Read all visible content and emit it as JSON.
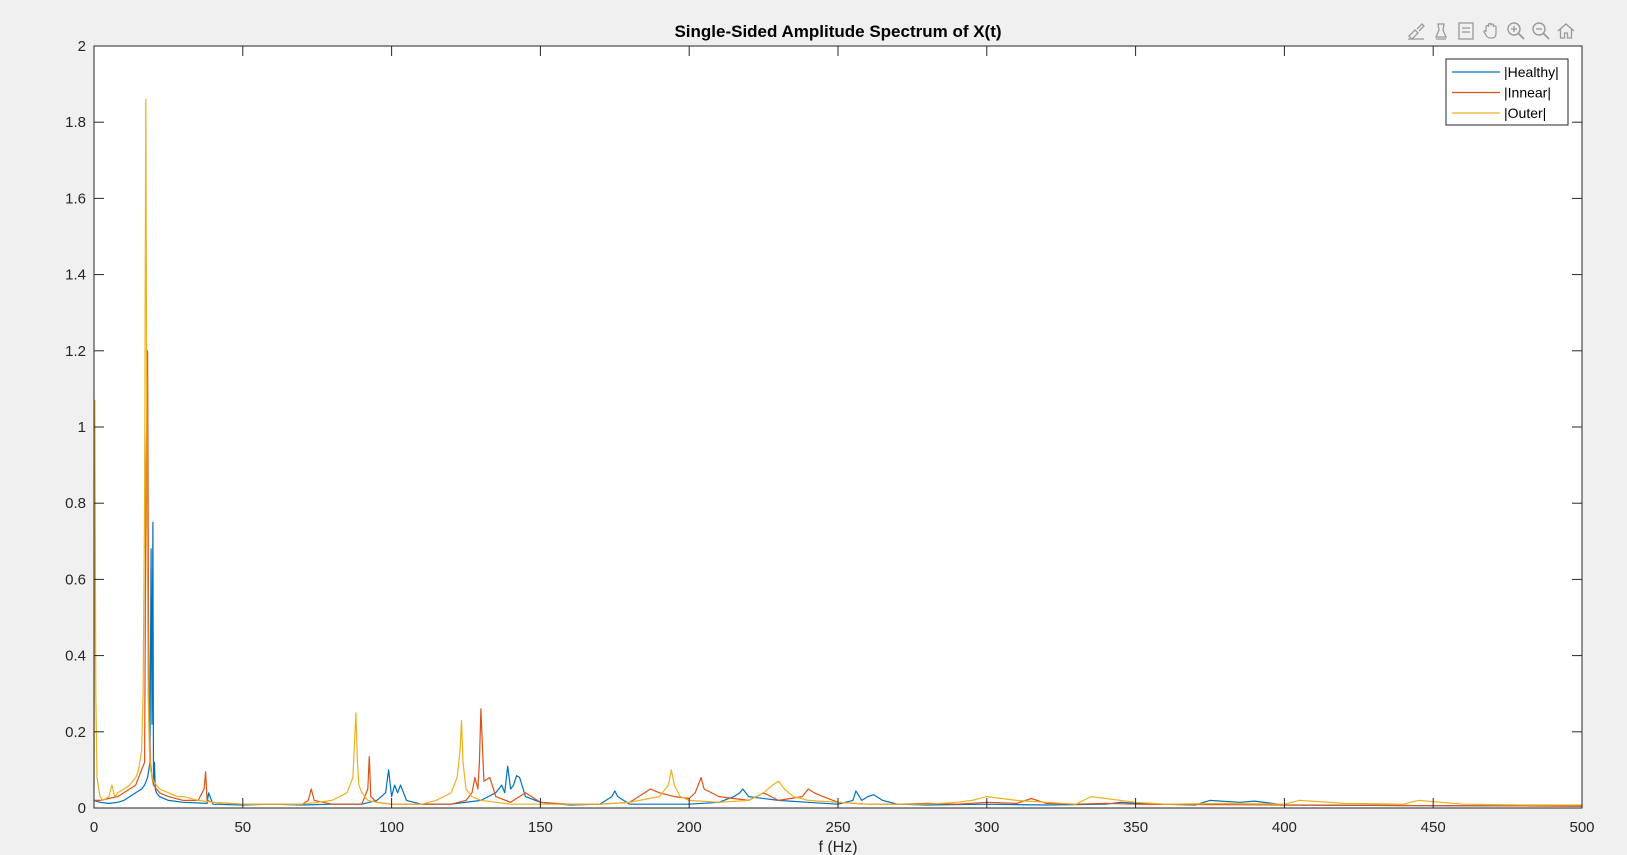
{
  "toolbar": {
    "icons": [
      "brush-icon",
      "datatip-icon",
      "legend-icon",
      "pan-hand-icon",
      "zoom-in-icon",
      "zoom-out-icon",
      "home-icon"
    ]
  },
  "chart_data": {
    "type": "line",
    "title": "Single-Sided Amplitude Spectrum of X(t)",
    "xlabel": "f (Hz)",
    "ylabel": "",
    "xlim": [
      0,
      500
    ],
    "ylim": [
      0,
      2
    ],
    "xticks": [
      0,
      50,
      100,
      150,
      200,
      250,
      300,
      350,
      400,
      450,
      500
    ],
    "yticks": [
      0,
      0.2,
      0.4,
      0.6,
      0.8,
      1,
      1.2,
      1.4,
      1.6,
      1.8,
      2
    ],
    "xtick_labels": [
      "0",
      "50",
      "100",
      "150",
      "200",
      "250",
      "300",
      "350",
      "400",
      "450",
      "500"
    ],
    "ytick_labels": [
      "0",
      "0.2",
      "0.4",
      "0.6",
      "0.8",
      "1",
      "1.2",
      "1.4",
      "1.6",
      "1.8",
      "2"
    ],
    "grid": false,
    "legend_position": "top-right",
    "series": [
      {
        "name": "|Healthy|",
        "color": "#0072BD",
        "x": [
          0,
          2,
          5,
          8,
          10,
          12,
          14,
          16,
          17,
          18,
          18.8,
          19.2,
          19.5,
          19.8,
          20,
          20.3,
          20.6,
          21,
          22,
          25,
          30,
          38,
          38.5,
          40,
          50,
          60,
          70,
          80,
          90,
          95,
          98,
          99,
          100,
          101,
          102,
          103,
          105,
          110,
          120,
          130,
          135,
          137,
          138,
          139,
          140,
          141,
          142,
          143,
          145,
          150,
          160,
          170,
          174,
          175,
          176,
          178,
          180,
          200,
          210,
          215,
          217,
          218,
          220,
          230,
          240,
          250,
          255,
          256,
          258,
          260,
          262,
          265,
          270,
          280,
          300,
          320,
          340,
          345,
          350,
          370,
          375,
          385,
          390,
          400,
          450,
          500
        ],
        "y": [
          0.02,
          0.015,
          0.012,
          0.015,
          0.02,
          0.03,
          0.04,
          0.05,
          0.06,
          0.08,
          0.12,
          0.68,
          0.22,
          0.75,
          0.06,
          0.12,
          0.05,
          0.04,
          0.03,
          0.02,
          0.015,
          0.012,
          0.04,
          0.01,
          0.008,
          0.01,
          0.008,
          0.01,
          0.01,
          0.02,
          0.04,
          0.1,
          0.03,
          0.06,
          0.04,
          0.06,
          0.02,
          0.01,
          0.01,
          0.02,
          0.04,
          0.06,
          0.04,
          0.11,
          0.05,
          0.06,
          0.085,
          0.08,
          0.03,
          0.015,
          0.008,
          0.01,
          0.03,
          0.045,
          0.03,
          0.02,
          0.01,
          0.01,
          0.015,
          0.03,
          0.04,
          0.05,
          0.03,
          0.02,
          0.015,
          0.01,
          0.02,
          0.045,
          0.02,
          0.03,
          0.035,
          0.02,
          0.01,
          0.008,
          0.01,
          0.008,
          0.01,
          0.015,
          0.012,
          0.008,
          0.02,
          0.015,
          0.018,
          0.008,
          0.006,
          0.005
        ]
      },
      {
        "name": "|Innear|",
        "color": "#D95319",
        "x": [
          0,
          2,
          5,
          8,
          10,
          12,
          14,
          15,
          16,
          17,
          17.5,
          18,
          18.3,
          18.6,
          19,
          19.5,
          20,
          22,
          25,
          30,
          35,
          37,
          37.5,
          38,
          40,
          50,
          60,
          70,
          72,
          73,
          74,
          80,
          90,
          92,
          92.5,
          93,
          95,
          100,
          110,
          120,
          125,
          127,
          128,
          129,
          129.5,
          130,
          131,
          133,
          135,
          140,
          145,
          150,
          160,
          170,
          180,
          185,
          187,
          190,
          195,
          200,
          202,
          204,
          205,
          210,
          220,
          225,
          230,
          238,
          240,
          242,
          245,
          250,
          260,
          270,
          280,
          290,
          300,
          310,
          315,
          320,
          330,
          340,
          350,
          400,
          450,
          500
        ],
        "y": [
          0.02,
          0.02,
          0.025,
          0.03,
          0.04,
          0.05,
          0.06,
          0.08,
          0.1,
          0.12,
          0.9,
          1.2,
          0.5,
          0.2,
          0.12,
          0.08,
          0.06,
          0.04,
          0.03,
          0.02,
          0.02,
          0.05,
          0.095,
          0.02,
          0.015,
          0.01,
          0.01,
          0.01,
          0.02,
          0.05,
          0.02,
          0.01,
          0.01,
          0.05,
          0.135,
          0.03,
          0.015,
          0.01,
          0.01,
          0.01,
          0.02,
          0.04,
          0.08,
          0.05,
          0.12,
          0.26,
          0.07,
          0.08,
          0.03,
          0.015,
          0.04,
          0.015,
          0.01,
          0.01,
          0.015,
          0.04,
          0.05,
          0.04,
          0.03,
          0.025,
          0.04,
          0.08,
          0.05,
          0.03,
          0.02,
          0.04,
          0.02,
          0.03,
          0.05,
          0.04,
          0.03,
          0.015,
          0.01,
          0.01,
          0.012,
          0.01,
          0.015,
          0.012,
          0.025,
          0.012,
          0.01,
          0.012,
          0.01,
          0.008,
          0.006,
          0.005
        ]
      },
      {
        "name": "|Outer|",
        "color": "#EDB120",
        "x": [
          0,
          0.3,
          0.6,
          1,
          2,
          3,
          5,
          6,
          7,
          8,
          10,
          12,
          14,
          15,
          16,
          16.5,
          17,
          17.4,
          17.8,
          18.2,
          18.6,
          19,
          20,
          22,
          25,
          28,
          30,
          35,
          40,
          50,
          60,
          70,
          80,
          85,
          87,
          88,
          88.5,
          89,
          90,
          92,
          95,
          100,
          110,
          115,
          120,
          122,
          123,
          123.5,
          124,
          125,
          127,
          130,
          135,
          140,
          150,
          160,
          170,
          180,
          190,
          193,
          194,
          195,
          197,
          200,
          210,
          220,
          225,
          228,
          230,
          232,
          235,
          240,
          250,
          260,
          270,
          280,
          290,
          295,
          300,
          310,
          320,
          330,
          335,
          340,
          350,
          360,
          380,
          400,
          405,
          420,
          440,
          445,
          460,
          480,
          500
        ],
        "y": [
          0.05,
          1.07,
          0.3,
          0.08,
          0.03,
          0.02,
          0.03,
          0.06,
          0.03,
          0.04,
          0.05,
          0.06,
          0.08,
          0.1,
          0.15,
          0.3,
          0.8,
          1.86,
          0.8,
          0.3,
          0.15,
          0.1,
          0.07,
          0.05,
          0.04,
          0.03,
          0.03,
          0.02,
          0.015,
          0.01,
          0.01,
          0.01,
          0.02,
          0.04,
          0.08,
          0.25,
          0.12,
          0.06,
          0.04,
          0.02,
          0.015,
          0.01,
          0.01,
          0.02,
          0.04,
          0.08,
          0.15,
          0.23,
          0.12,
          0.05,
          0.03,
          0.02,
          0.015,
          0.01,
          0.01,
          0.01,
          0.01,
          0.015,
          0.03,
          0.06,
          0.1,
          0.06,
          0.03,
          0.02,
          0.015,
          0.02,
          0.04,
          0.06,
          0.07,
          0.05,
          0.03,
          0.02,
          0.015,
          0.01,
          0.01,
          0.01,
          0.015,
          0.02,
          0.03,
          0.02,
          0.015,
          0.01,
          0.03,
          0.025,
          0.015,
          0.01,
          0.012,
          0.01,
          0.02,
          0.012,
          0.01,
          0.02,
          0.01,
          0.008,
          0.008
        ]
      }
    ]
  }
}
